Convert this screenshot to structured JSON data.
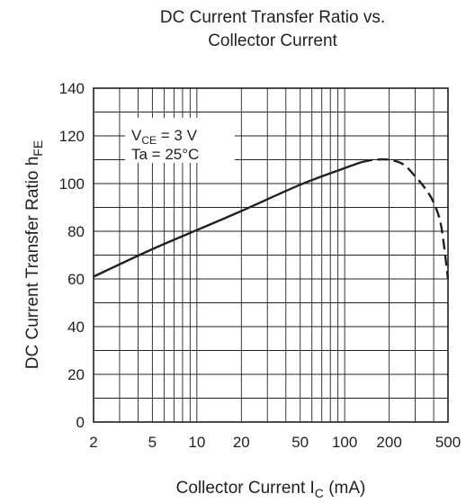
{
  "chart_data": {
    "type": "line",
    "title": [
      "DC Current Transfer Ratio vs.",
      "Collector Current"
    ],
    "ylabel": {
      "main": "DC Current Transfer Ratio  h",
      "sub": "FE"
    },
    "xlabel": {
      "main": "Collector Current  I",
      "sub": "C",
      "unit": "  (mA)"
    },
    "x_scale": "log",
    "xlim": [
      2,
      500
    ],
    "ylim": [
      0,
      140
    ],
    "x_ticks": [
      2,
      5,
      10,
      20,
      50,
      100,
      200,
      500
    ],
    "x_tick_labels": [
      "2",
      "5",
      "10",
      "20",
      "50",
      "100",
      "200",
      "500"
    ],
    "y_ticks": [
      0,
      20,
      40,
      60,
      80,
      100,
      120,
      140
    ],
    "y_tick_labels": [
      "0",
      "20",
      "40",
      "60",
      "80",
      "100",
      "120",
      "140"
    ],
    "grid": true,
    "annotation": {
      "line1": {
        "main": "V",
        "sub": "CE",
        "rest": " = 3 V"
      },
      "line2": "Ta = 25°C"
    },
    "series": [
      {
        "style": "solid",
        "x": [
          2,
          5,
          10,
          20,
          50,
          100,
          130
        ],
        "y": [
          61,
          72.5,
          80.5,
          88.5,
          99.5,
          106.5,
          109
        ]
      },
      {
        "style": "dashed",
        "x": [
          130,
          160,
          200,
          250,
          300,
          350,
          400,
          450,
          500
        ],
        "y": [
          109,
          110,
          110,
          108,
          103,
          98,
          92,
          82,
          60
        ]
      }
    ]
  }
}
